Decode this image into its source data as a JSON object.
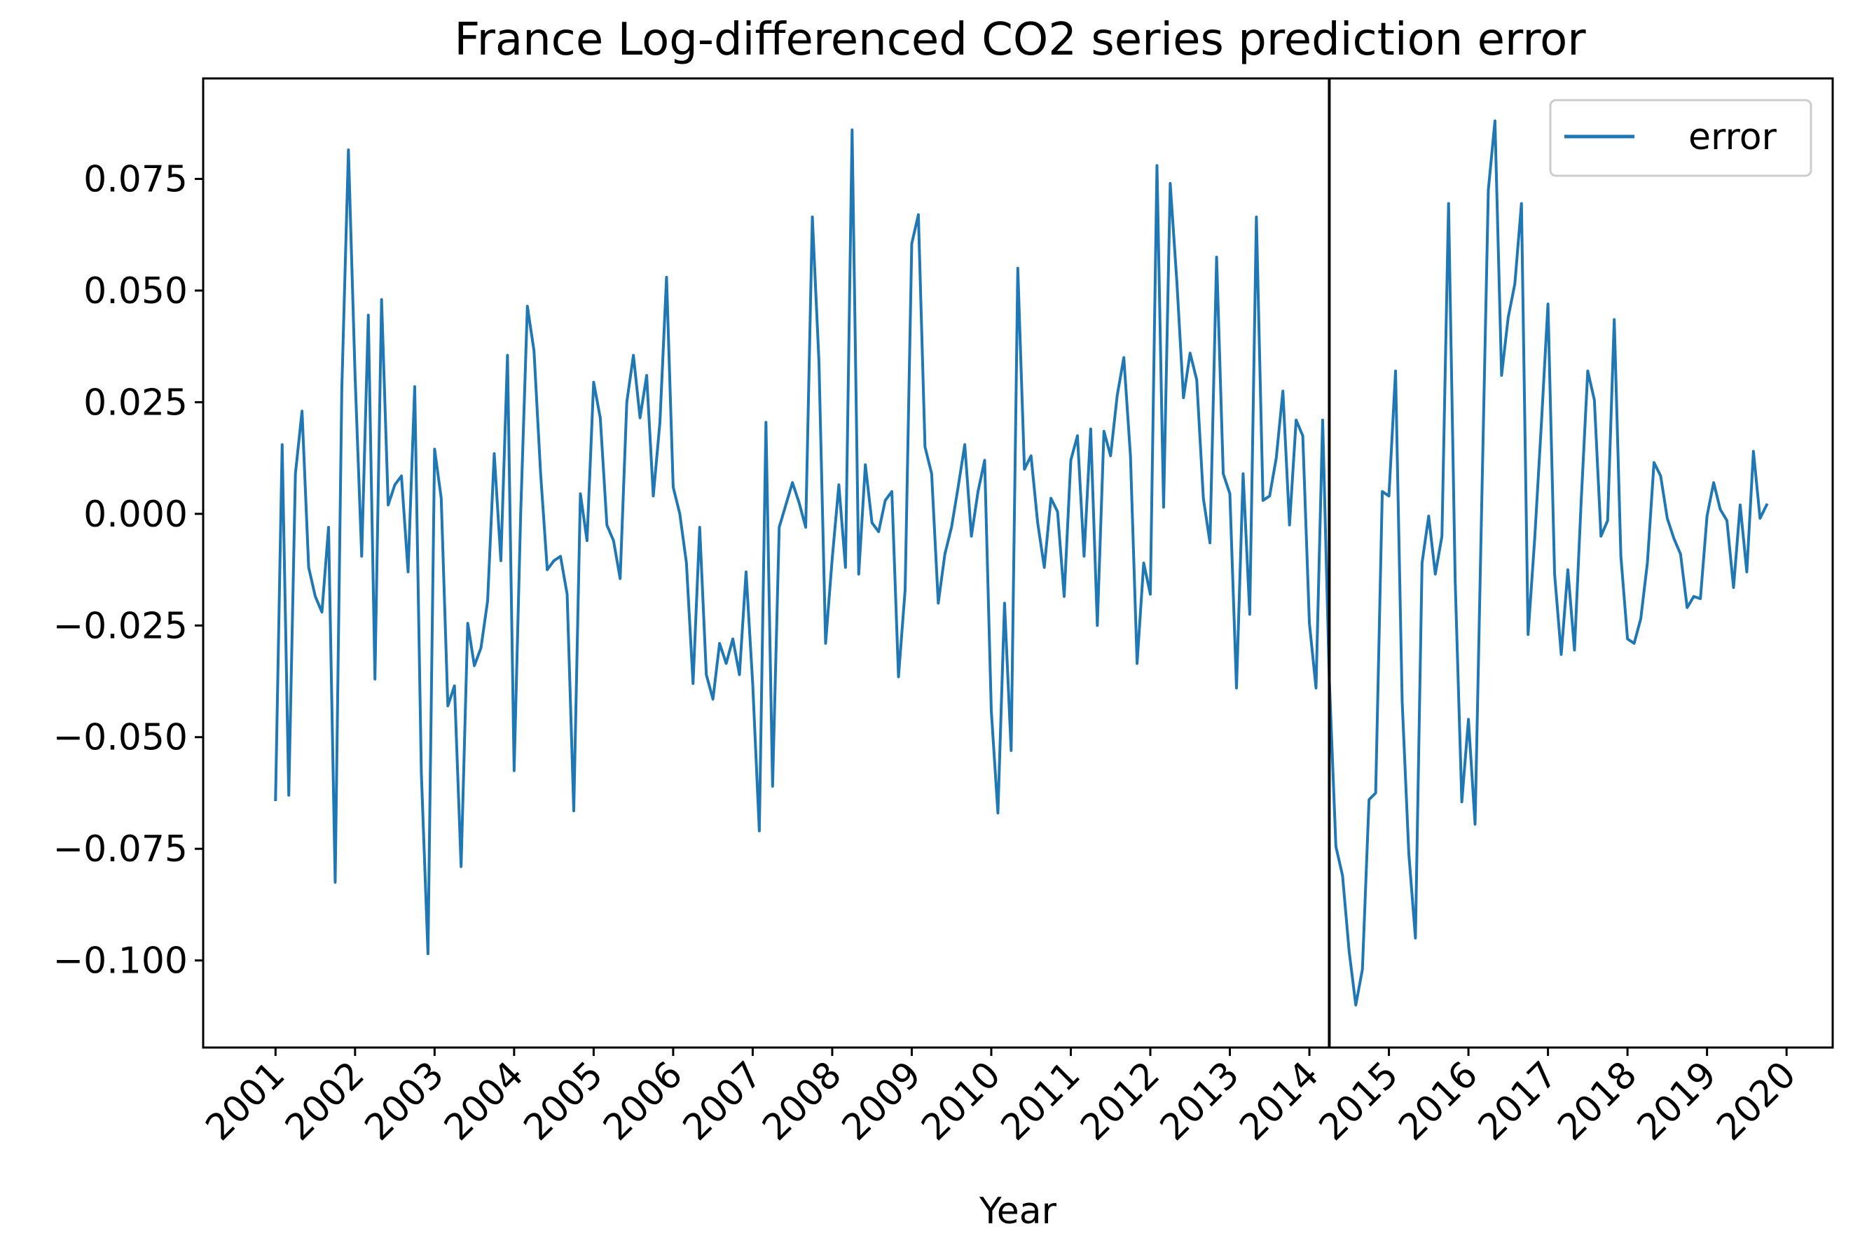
{
  "chart_data": {
    "type": "line",
    "title": "France Log-differenced CO2 series prediction error",
    "xlabel": "Year",
    "ylabel": "",
    "xlim": [
      2000.09,
      2020.58
    ],
    "ylim": [
      -0.1195,
      0.0975
    ],
    "x_ticks": [
      2001,
      2002,
      2003,
      2004,
      2005,
      2006,
      2007,
      2008,
      2009,
      2010,
      2011,
      2012,
      2013,
      2014,
      2015,
      2016,
      2017,
      2018,
      2019,
      2020
    ],
    "x_tick_labels": [
      "2001",
      "2002",
      "2003",
      "2004",
      "2005",
      "2006",
      "2007",
      "2008",
      "2009",
      "2010",
      "2011",
      "2012",
      "2013",
      "2014",
      "2015",
      "2016",
      "2017",
      "2018",
      "2019",
      "2020"
    ],
    "y_ticks": [
      -0.1,
      -0.075,
      -0.05,
      -0.025,
      0.0,
      0.025,
      0.05,
      0.075
    ],
    "y_tick_labels": [
      "−0.100",
      "−0.075",
      "−0.050",
      "−0.025",
      "0.000",
      "0.025",
      "0.050",
      "0.075"
    ],
    "vline_x": 2014.25,
    "grid": false,
    "legend": "upper right",
    "colors": {
      "series": "#1f77b4",
      "vline": "#000000"
    },
    "series": [
      {
        "name": "error",
        "x_start": 2001.0,
        "step_months": 1,
        "values": [
          -0.064,
          0.0155,
          -0.063,
          0.009,
          0.023,
          -0.012,
          -0.0185,
          -0.022,
          -0.003,
          -0.0825,
          0.028,
          0.0815,
          0.031,
          -0.0095,
          0.0445,
          -0.037,
          0.048,
          0.002,
          0.0065,
          0.0085,
          -0.013,
          0.0285,
          -0.058,
          -0.0985,
          0.0145,
          0.0035,
          -0.043,
          -0.0385,
          -0.079,
          -0.0245,
          -0.034,
          -0.03,
          -0.0195,
          0.0135,
          -0.0105,
          0.0355,
          -0.0575,
          0.0005,
          0.0465,
          0.0365,
          0.009,
          -0.0125,
          -0.0105,
          -0.0095,
          -0.018,
          -0.0665,
          0.0045,
          -0.006,
          0.0295,
          0.0215,
          -0.0025,
          -0.006,
          -0.0145,
          0.025,
          0.0355,
          0.0215,
          0.031,
          0.004,
          0.0205,
          0.053,
          0.006,
          0.0,
          -0.011,
          -0.038,
          -0.003,
          -0.036,
          -0.0415,
          -0.029,
          -0.0335,
          -0.028,
          -0.036,
          -0.013,
          -0.038,
          -0.071,
          0.0205,
          -0.061,
          -0.003,
          0.002,
          0.007,
          0.0025,
          -0.003,
          0.0665,
          0.034,
          -0.029,
          -0.01,
          0.0065,
          -0.012,
          0.086,
          -0.0135,
          0.011,
          -0.002,
          -0.004,
          0.003,
          0.005,
          -0.0365,
          -0.017,
          0.0605,
          0.067,
          0.015,
          0.009,
          -0.02,
          -0.009,
          -0.003,
          0.006,
          0.0155,
          -0.005,
          0.005,
          0.012,
          -0.044,
          -0.067,
          -0.02,
          -0.053,
          0.055,
          0.01,
          0.013,
          -0.002,
          -0.012,
          0.0035,
          0.0005,
          -0.0185,
          0.012,
          0.0175,
          -0.0095,
          0.019,
          -0.025,
          0.0185,
          0.013,
          0.0265,
          0.035,
          0.013,
          -0.0335,
          -0.011,
          -0.018,
          0.078,
          0.0015,
          0.074,
          0.052,
          0.026,
          0.036,
          0.03,
          0.0035,
          -0.0065,
          0.0575,
          0.009,
          0.0045,
          -0.039,
          0.009,
          -0.0225,
          0.0665,
          0.003,
          0.004,
          0.0125,
          0.0275,
          -0.0025,
          0.021,
          0.0175,
          -0.0245,
          -0.039,
          0.021,
          -0.037,
          -0.0745,
          -0.081,
          -0.098,
          -0.11,
          -0.102,
          -0.064,
          -0.0625,
          0.005,
          0.004,
          0.032,
          -0.042,
          -0.076,
          -0.095,
          -0.011,
          -0.0005,
          -0.0135,
          -0.005,
          0.0695,
          -0.015,
          -0.0645,
          -0.046,
          -0.0695,
          0.002,
          0.0725,
          0.088,
          0.031,
          0.044,
          0.0515,
          0.0695,
          -0.027,
          -0.0055,
          0.02,
          0.047,
          -0.0135,
          -0.0315,
          -0.0125,
          -0.0305,
          0.0025,
          0.032,
          0.0255,
          -0.005,
          -0.0015,
          0.0435,
          -0.0095,
          -0.028,
          -0.029,
          -0.0235,
          -0.011,
          0.0115,
          0.0085,
          -0.001,
          -0.0055,
          -0.009,
          -0.021,
          -0.0185,
          -0.019,
          -0.0005,
          0.007,
          0.001,
          -0.0015,
          -0.0165,
          0.002,
          -0.013,
          0.014,
          -0.001,
          0.002
        ]
      }
    ]
  }
}
